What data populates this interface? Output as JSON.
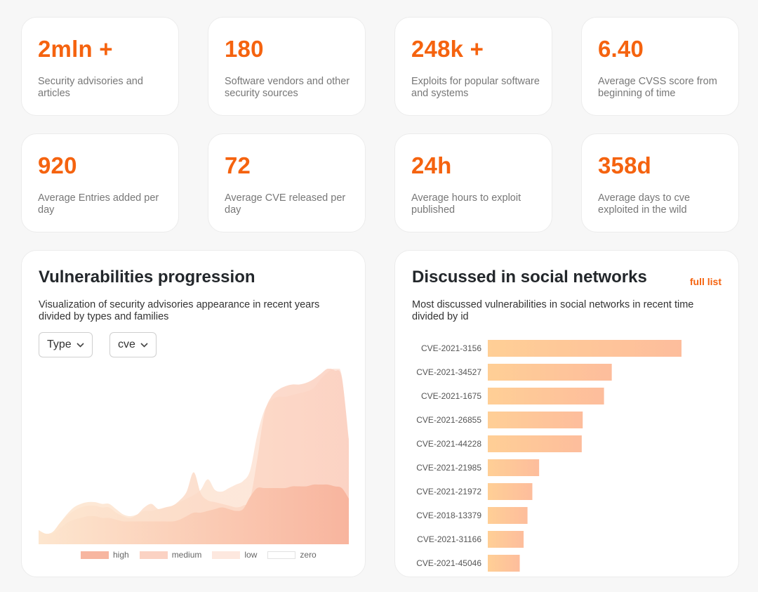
{
  "stats": [
    {
      "value": "2mln +",
      "label": "Security advisories and articles"
    },
    {
      "value": "180",
      "label": "Software vendors and other security sources"
    },
    {
      "value": "248k +",
      "label": "Exploits for popular software and systems"
    },
    {
      "value": "6.40",
      "label": "Average CVSS score from beginning of time"
    },
    {
      "value": "920",
      "label": "Average Entries added per day"
    },
    {
      "value": "72",
      "label": "Average CVE released per day"
    },
    {
      "value": "24h",
      "label": "Average hours to exploit published"
    },
    {
      "value": "358d",
      "label": "Average days to cve exploited in the wild"
    }
  ],
  "progression": {
    "title": "Vulnerabilities progression",
    "description": "Visualization of security advisories appearance in recent years divided by types and families",
    "filters": [
      {
        "label": "Type"
      },
      {
        "label": "cve"
      }
    ],
    "legend": [
      {
        "label": "high",
        "color": "#f7b6a0"
      },
      {
        "label": "medium",
        "color": "#fbd2c3"
      },
      {
        "label": "low",
        "color": "#fde8df"
      },
      {
        "label": "zero",
        "color": "#ffffff"
      }
    ]
  },
  "social": {
    "title": "Discussed in social networks",
    "link": "full list",
    "description": "Most discussed vulnerabilities in social networks in recent time divided by id"
  },
  "chart_data": [
    {
      "type": "area",
      "title": "Vulnerabilities progression",
      "xlabel": "",
      "ylabel": "",
      "ylim": [
        0,
        100
      ],
      "x": [
        0,
        1,
        2,
        3,
        4,
        5,
        6,
        7,
        8,
        9,
        10,
        11,
        12,
        13,
        14,
        15,
        16,
        17,
        18,
        19,
        20,
        21,
        22,
        23,
        24,
        25,
        26,
        27,
        28,
        29,
        30,
        31,
        32,
        33,
        34,
        35,
        36,
        37,
        38,
        39,
        40,
        41,
        42,
        43,
        44
      ],
      "series": [
        {
          "name": "low",
          "color": "#fde4da",
          "values": [
            8,
            6,
            7,
            12,
            17,
            21,
            23,
            24,
            24,
            23,
            23,
            20,
            17,
            16,
            17,
            19,
            19,
            20,
            21,
            22,
            24,
            26,
            28,
            31,
            37,
            31,
            30,
            32,
            34,
            36,
            42,
            62,
            76,
            82,
            84,
            84,
            85,
            86,
            87,
            89,
            94,
            98,
            100,
            96,
            56
          ]
        },
        {
          "name": "medium",
          "color": "#fbcfbf",
          "values": [
            8,
            6,
            7,
            12,
            16,
            19,
            21,
            22,
            22,
            21,
            21,
            18,
            16,
            15,
            17,
            21,
            23,
            20,
            21,
            22,
            25,
            30,
            41,
            29,
            25,
            24,
            23,
            22,
            21,
            22,
            26,
            48,
            74,
            84,
            88,
            90,
            91,
            91,
            92,
            94,
            97,
            100,
            99,
            95,
            60
          ]
        },
        {
          "name": "high",
          "color": "#f8b39c",
          "values": [
            8,
            6,
            6,
            9,
            12,
            14,
            15,
            16,
            16,
            15,
            15,
            14,
            13,
            13,
            13,
            13,
            13,
            13,
            13,
            13,
            14,
            16,
            18,
            18,
            19,
            20,
            21,
            20,
            19,
            20,
            27,
            32,
            32,
            32,
            32,
            32,
            33,
            33,
            33,
            34,
            34,
            34,
            33,
            32,
            26
          ]
        }
      ]
    },
    {
      "type": "bar",
      "orientation": "horizontal",
      "title": "Discussed in social networks",
      "categories": [
        "CVE-2021-3156",
        "CVE-2021-34527",
        "CVE-2021-1675",
        "CVE-2021-26855",
        "CVE-2021-44228",
        "CVE-2021-21985",
        "CVE-2021-21972",
        "CVE-2018-13379",
        "CVE-2021-31166",
        "CVE-2021-45046"
      ],
      "values": [
        100,
        64,
        60,
        49,
        48.5,
        26.5,
        23,
        20.5,
        18.5,
        16.5
      ],
      "xlim": [
        0,
        100
      ],
      "bar_color_start": "#ffcf96",
      "bar_color_end": "#fdbd9c"
    }
  ]
}
